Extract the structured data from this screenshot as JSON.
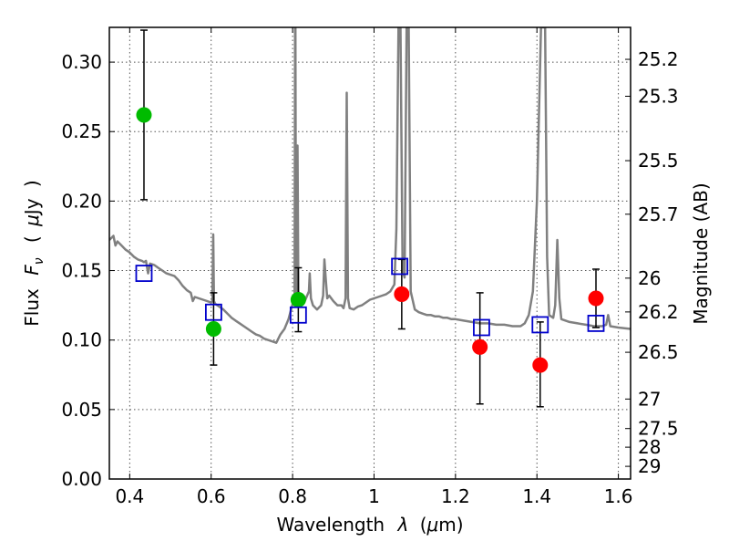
{
  "chart_data": {
    "type": "scatter",
    "title": "",
    "xlabel": {
      "prefix": "Wavelength",
      "symbol": "λ",
      "unit_open": "(",
      "unit_mu": "μ",
      "unit_rest": "m)"
    },
    "ylabel": {
      "prefix": "Flux",
      "symbol": "F",
      "subscript": "ν",
      "unit_open": "(",
      "unit_mu": "μ",
      "unit_rest": "Jy",
      "unit_close": ")"
    },
    "ylabel_right": "Magnitude (AB)",
    "xlim": [
      0.35,
      1.63
    ],
    "ylim": [
      0.0,
      0.325
    ],
    "grid": true,
    "x_ticks": [
      {
        "value": 0.4,
        "label": "0.4"
      },
      {
        "value": 0.6,
        "label": "0.6"
      },
      {
        "value": 0.8,
        "label": "0.8"
      },
      {
        "value": 1.0,
        "label": "1"
      },
      {
        "value": 1.2,
        "label": "1.2"
      },
      {
        "value": 1.4,
        "label": "1.4"
      },
      {
        "value": 1.6,
        "label": "1.6"
      }
    ],
    "y_ticks": [
      {
        "value": 0.0,
        "label": "0.00"
      },
      {
        "value": 0.05,
        "label": "0.05"
      },
      {
        "value": 0.1,
        "label": "0.10"
      },
      {
        "value": 0.15,
        "label": "0.15"
      },
      {
        "value": 0.2,
        "label": "0.20"
      },
      {
        "value": 0.25,
        "label": "0.25"
      },
      {
        "value": 0.3,
        "label": "0.30"
      }
    ],
    "mag_ticks": [
      {
        "mag": 25.2,
        "label": "25.2"
      },
      {
        "mag": 25.3,
        "label": "25.3"
      },
      {
        "mag": 25.5,
        "label": "25.5"
      },
      {
        "mag": 25.7,
        "label": "25.7"
      },
      {
        "mag": 26.0,
        "label": "26"
      },
      {
        "mag": 26.2,
        "label": "26.2"
      },
      {
        "mag": 26.5,
        "label": "26.5"
      },
      {
        "mag": 27.0,
        "label": "27"
      },
      {
        "mag": 27.5,
        "label": "27.5"
      },
      {
        "mag": 28.0,
        "label": "28"
      },
      {
        "mag": 29.0,
        "label": "29"
      }
    ],
    "colors": {
      "green": "#00bb00",
      "red": "#ff0000",
      "blue": "#0000cc",
      "model": "#808080",
      "errorbar": "#000000",
      "grid": "#555555"
    },
    "series": [
      {
        "name": "observed-green",
        "marker": "circle",
        "color": "green",
        "points": [
          {
            "x": 0.435,
            "y": 0.262,
            "ylow": 0.201,
            "yhigh": 0.323
          },
          {
            "x": 0.606,
            "y": 0.108,
            "ylow": 0.082,
            "yhigh": 0.134
          },
          {
            "x": 0.814,
            "y": 0.129,
            "ylow": 0.106,
            "yhigh": 0.152
          }
        ]
      },
      {
        "name": "observed-red",
        "marker": "circle",
        "color": "red",
        "points": [
          {
            "x": 1.068,
            "y": 0.133,
            "ylow": 0.108,
            "yhigh": 0.158
          },
          {
            "x": 1.26,
            "y": 0.095,
            "ylow": 0.054,
            "yhigh": 0.134
          },
          {
            "x": 1.408,
            "y": 0.082,
            "ylow": 0.052,
            "yhigh": 0.113
          },
          {
            "x": 1.545,
            "y": 0.13,
            "ylow": 0.109,
            "yhigh": 0.151
          }
        ]
      },
      {
        "name": "model-photometry",
        "marker": "square",
        "color": "blue",
        "points": [
          {
            "x": 0.435,
            "y": 0.148
          },
          {
            "x": 0.606,
            "y": 0.12
          },
          {
            "x": 0.814,
            "y": 0.118
          },
          {
            "x": 1.063,
            "y": 0.153
          },
          {
            "x": 1.264,
            "y": 0.109
          },
          {
            "x": 1.408,
            "y": 0.111
          },
          {
            "x": 1.545,
            "y": 0.112
          }
        ]
      }
    ],
    "model_spectrum": [
      [
        0.35,
        0.172
      ],
      [
        0.36,
        0.175
      ],
      [
        0.365,
        0.168
      ],
      [
        0.37,
        0.171
      ],
      [
        0.38,
        0.168
      ],
      [
        0.39,
        0.165
      ],
      [
        0.4,
        0.163
      ],
      [
        0.41,
        0.16
      ],
      [
        0.42,
        0.158
      ],
      [
        0.43,
        0.157
      ],
      [
        0.435,
        0.156
      ],
      [
        0.44,
        0.157
      ],
      [
        0.445,
        0.148
      ],
      [
        0.45,
        0.155
      ],
      [
        0.46,
        0.154
      ],
      [
        0.47,
        0.152
      ],
      [
        0.48,
        0.15
      ],
      [
        0.49,
        0.148
      ],
      [
        0.5,
        0.147
      ],
      [
        0.51,
        0.146
      ],
      [
        0.52,
        0.143
      ],
      [
        0.53,
        0.139
      ],
      [
        0.54,
        0.136
      ],
      [
        0.55,
        0.134
      ],
      [
        0.555,
        0.128
      ],
      [
        0.56,
        0.131
      ],
      [
        0.57,
        0.13
      ],
      [
        0.58,
        0.129
      ],
      [
        0.59,
        0.128
      ],
      [
        0.6,
        0.127
      ],
      [
        0.603,
        0.128
      ],
      [
        0.605,
        0.176
      ],
      [
        0.607,
        0.128
      ],
      [
        0.61,
        0.126
      ],
      [
        0.62,
        0.124
      ],
      [
        0.63,
        0.122
      ],
      [
        0.64,
        0.119
      ],
      [
        0.65,
        0.116
      ],
      [
        0.66,
        0.114
      ],
      [
        0.67,
        0.112
      ],
      [
        0.68,
        0.11
      ],
      [
        0.69,
        0.108
      ],
      [
        0.7,
        0.106
      ],
      [
        0.71,
        0.104
      ],
      [
        0.72,
        0.103
      ],
      [
        0.73,
        0.101
      ],
      [
        0.74,
        0.1
      ],
      [
        0.75,
        0.099
      ],
      [
        0.76,
        0.098
      ],
      [
        0.77,
        0.104
      ],
      [
        0.78,
        0.108
      ],
      [
        0.79,
        0.115
      ],
      [
        0.8,
        0.126
      ],
      [
        0.805,
        0.13
      ],
      [
        0.806,
        0.325
      ],
      [
        0.807,
        0.325
      ],
      [
        0.808,
        0.165
      ],
      [
        0.81,
        0.131
      ],
      [
        0.812,
        0.24
      ],
      [
        0.814,
        0.135
      ],
      [
        0.82,
        0.131
      ],
      [
        0.83,
        0.128
      ],
      [
        0.84,
        0.135
      ],
      [
        0.842,
        0.148
      ],
      [
        0.845,
        0.13
      ],
      [
        0.85,
        0.125
      ],
      [
        0.86,
        0.122
      ],
      [
        0.87,
        0.125
      ],
      [
        0.875,
        0.132
      ],
      [
        0.878,
        0.158
      ],
      [
        0.882,
        0.142
      ],
      [
        0.885,
        0.13
      ],
      [
        0.89,
        0.132
      ],
      [
        0.9,
        0.128
      ],
      [
        0.91,
        0.125
      ],
      [
        0.92,
        0.125
      ],
      [
        0.925,
        0.123
      ],
      [
        0.93,
        0.13
      ],
      [
        0.933,
        0.278
      ],
      [
        0.936,
        0.13
      ],
      [
        0.94,
        0.123
      ],
      [
        0.95,
        0.122
      ],
      [
        0.96,
        0.124
      ],
      [
        0.97,
        0.125
      ],
      [
        0.98,
        0.127
      ],
      [
        0.99,
        0.129
      ],
      [
        1.0,
        0.13
      ],
      [
        1.01,
        0.131
      ],
      [
        1.02,
        0.132
      ],
      [
        1.03,
        0.133
      ],
      [
        1.04,
        0.135
      ],
      [
        1.05,
        0.14
      ],
      [
        1.055,
        0.18
      ],
      [
        1.06,
        0.325
      ],
      [
        1.065,
        0.325
      ],
      [
        1.07,
        0.15
      ],
      [
        1.075,
        0.145
      ],
      [
        1.08,
        0.325
      ],
      [
        1.085,
        0.325
      ],
      [
        1.09,
        0.135
      ],
      [
        1.1,
        0.122
      ],
      [
        1.11,
        0.12
      ],
      [
        1.12,
        0.119
      ],
      [
        1.13,
        0.118
      ],
      [
        1.14,
        0.118
      ],
      [
        1.15,
        0.117
      ],
      [
        1.16,
        0.117
      ],
      [
        1.17,
        0.116
      ],
      [
        1.18,
        0.116
      ],
      [
        1.19,
        0.115
      ],
      [
        1.2,
        0.115
      ],
      [
        1.22,
        0.114
      ],
      [
        1.24,
        0.113
      ],
      [
        1.26,
        0.112
      ],
      [
        1.28,
        0.112
      ],
      [
        1.3,
        0.111
      ],
      [
        1.32,
        0.111
      ],
      [
        1.34,
        0.11
      ],
      [
        1.36,
        0.11
      ],
      [
        1.37,
        0.112
      ],
      [
        1.38,
        0.118
      ],
      [
        1.39,
        0.135
      ],
      [
        1.4,
        0.2
      ],
      [
        1.41,
        0.325
      ],
      [
        1.42,
        0.325
      ],
      [
        1.425,
        0.16
      ],
      [
        1.43,
        0.118
      ],
      [
        1.44,
        0.116
      ],
      [
        1.445,
        0.125
      ],
      [
        1.45,
        0.172
      ],
      [
        1.455,
        0.13
      ],
      [
        1.46,
        0.115
      ],
      [
        1.48,
        0.113
      ],
      [
        1.5,
        0.112
      ],
      [
        1.52,
        0.111
      ],
      [
        1.54,
        0.11
      ],
      [
        1.56,
        0.11
      ],
      [
        1.57,
        0.111
      ],
      [
        1.575,
        0.118
      ],
      [
        1.58,
        0.11
      ],
      [
        1.6,
        0.109
      ],
      [
        1.63,
        0.108
      ]
    ]
  }
}
